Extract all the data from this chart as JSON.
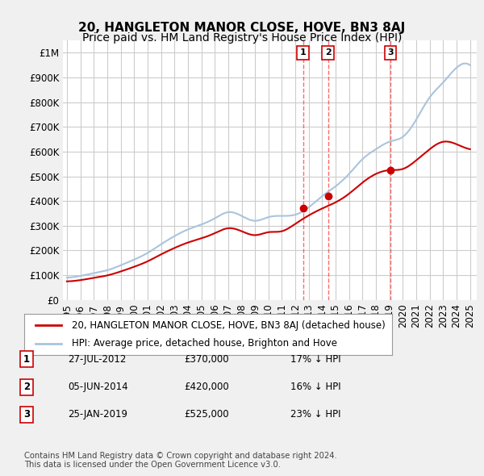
{
  "title": "20, HANGLETON MANOR CLOSE, HOVE, BN3 8AJ",
  "subtitle": "Price paid vs. HM Land Registry's House Price Index (HPI)",
  "ylabel_top": "£1M",
  "ylim": [
    0,
    1000000
  ],
  "yticks": [
    0,
    100000,
    200000,
    300000,
    400000,
    500000,
    600000,
    700000,
    800000,
    900000,
    1000000
  ],
  "ytick_labels": [
    "£0",
    "£100K",
    "£200K",
    "£300K",
    "£400K",
    "£500K",
    "£600K",
    "£700K",
    "£800K",
    "£900K",
    "£1M"
  ],
  "xlim_start": 1995.0,
  "xlim_end": 2025.5,
  "background_color": "#f0f0f0",
  "plot_bg_color": "#ffffff",
  "grid_color": "#cccccc",
  "hpi_color": "#aac4dd",
  "price_color": "#cc0000",
  "marker_color": "#cc0000",
  "transaction_dates": [
    2012.57,
    2014.43,
    2019.07
  ],
  "transaction_prices": [
    370000,
    420000,
    525000
  ],
  "transaction_labels": [
    "1",
    "2",
    "3"
  ],
  "vline_color": "#ff4444",
  "legend_items": [
    "20, HANGLETON MANOR CLOSE, HOVE, BN3 8AJ (detached house)",
    "HPI: Average price, detached house, Brighton and Hove"
  ],
  "table_rows": [
    [
      "1",
      "27-JUL-2012",
      "£370,000",
      "17% ↓ HPI"
    ],
    [
      "2",
      "05-JUN-2014",
      "£420,000",
      "16% ↓ HPI"
    ],
    [
      "3",
      "25-JAN-2019",
      "£525,000",
      "23% ↓ HPI"
    ]
  ],
  "footnote": "Contains HM Land Registry data © Crown copyright and database right 2024.\nThis data is licensed under the Open Government Licence v3.0.",
  "title_fontsize": 11,
  "subtitle_fontsize": 10,
  "tick_fontsize": 8.5,
  "xtick_years": [
    1995,
    1996,
    1997,
    1998,
    1999,
    2000,
    2001,
    2002,
    2003,
    2004,
    2005,
    2006,
    2007,
    2008,
    2009,
    2010,
    2011,
    2012,
    2013,
    2014,
    2015,
    2016,
    2017,
    2018,
    2019,
    2020,
    2021,
    2022,
    2023,
    2024,
    2025
  ]
}
